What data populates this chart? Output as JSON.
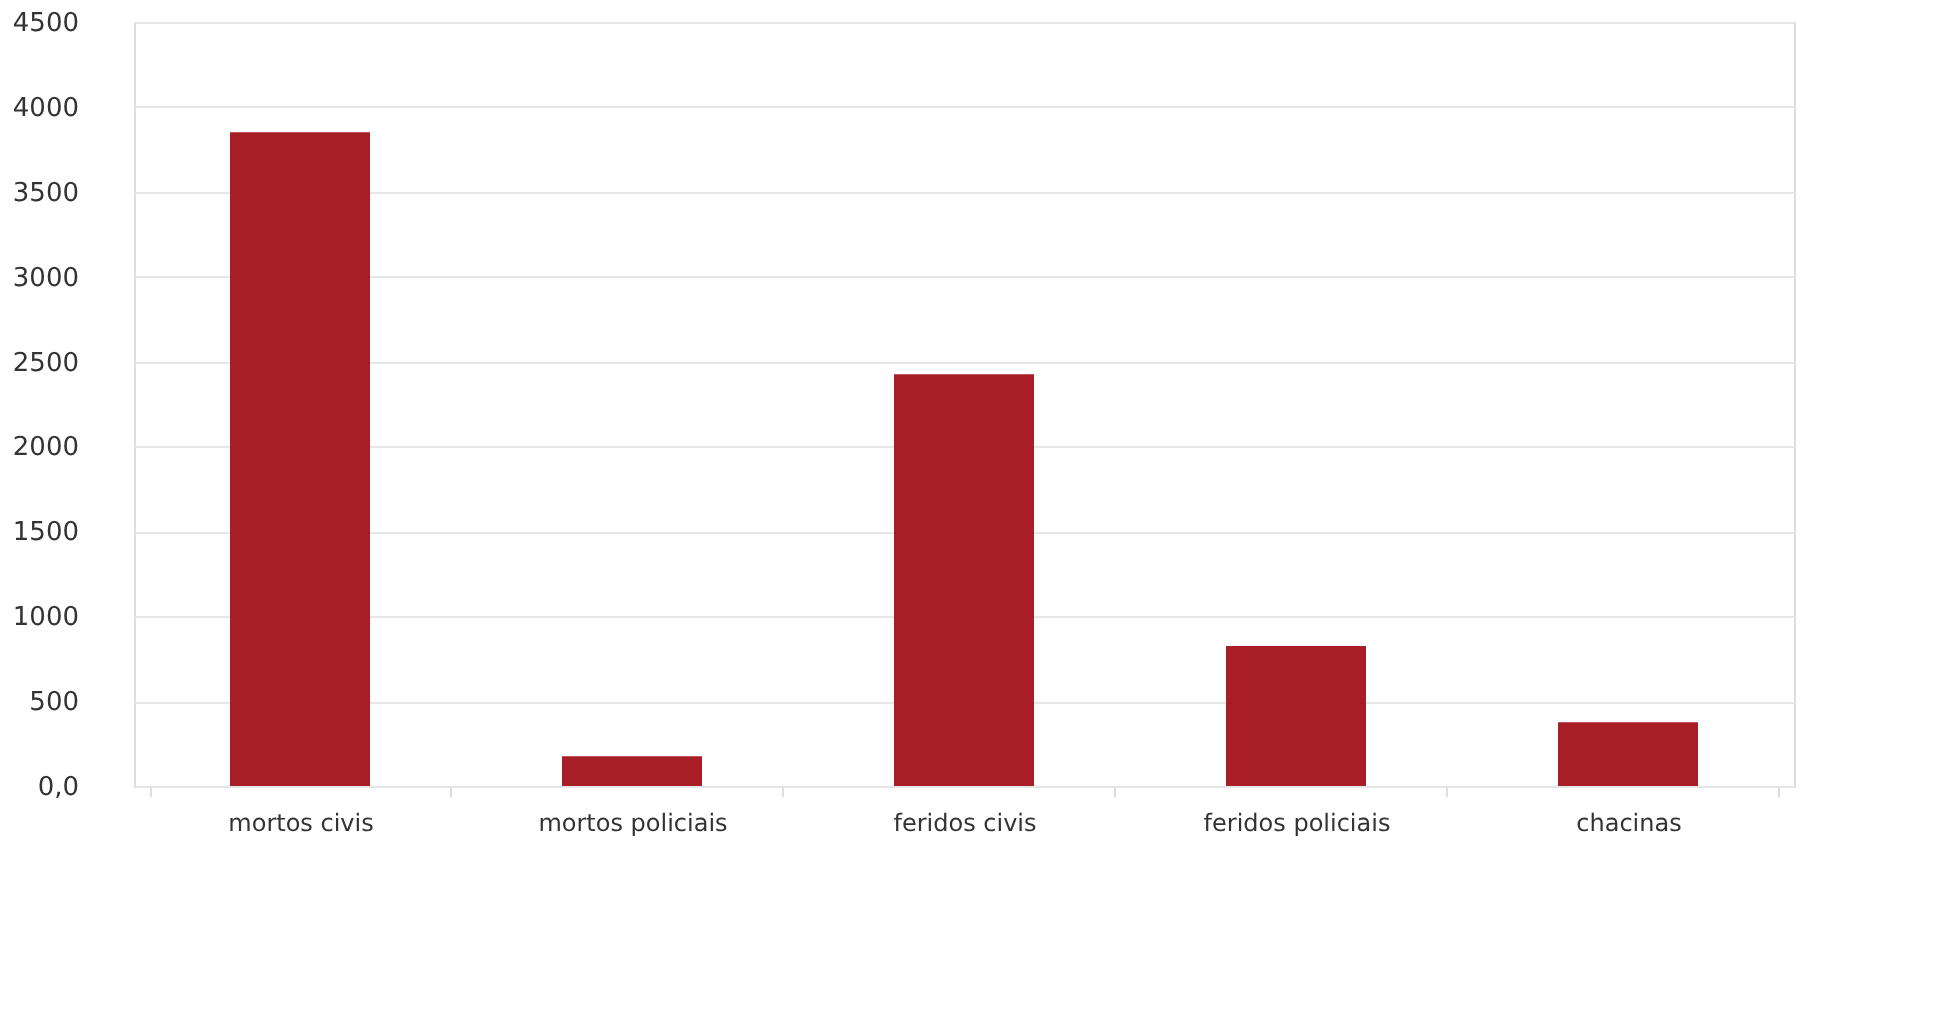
{
  "chart_data": {
    "type": "bar",
    "categories": [
      "mortos civis",
      "mortos policiais",
      "feridos civis",
      "feridos policiais",
      "chacinas"
    ],
    "values": [
      3850,
      175,
      2425,
      825,
      375
    ],
    "color": "#a91d27",
    "ylim": [
      0,
      4500
    ],
    "yticks": [
      {
        "value": 0,
        "label": "0,0"
      },
      500,
      1000,
      1500,
      2000,
      2500,
      3000,
      3500,
      4000,
      4500
    ],
    "grid": "y"
  }
}
